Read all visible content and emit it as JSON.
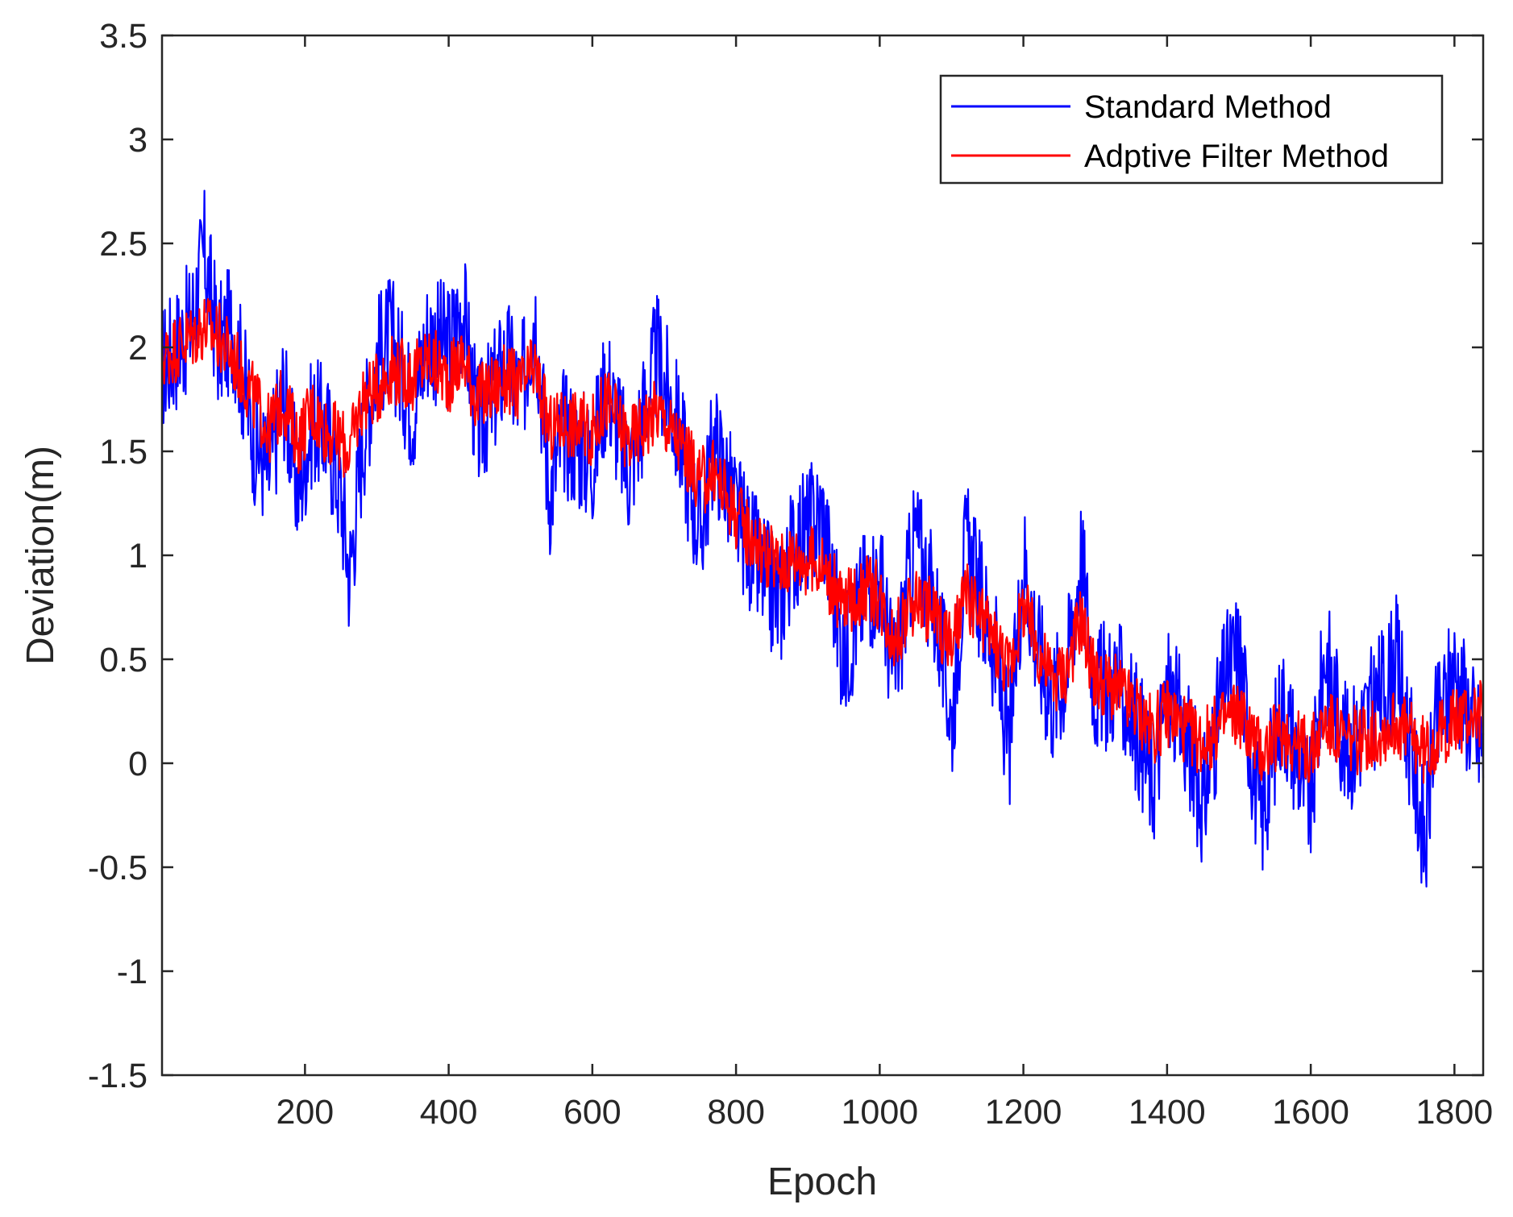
{
  "chart_data": {
    "type": "line",
    "title": "",
    "xlabel": "Epoch",
    "ylabel": "Deviation(m)",
    "xlim": [
      1,
      1840
    ],
    "ylim": [
      -1.5,
      3.5
    ],
    "xticks": [
      200,
      400,
      600,
      800,
      1000,
      1200,
      1400,
      1600,
      1800
    ],
    "xtick_labels": [
      "200",
      "400",
      "600",
      "800",
      "1000",
      "1200",
      "1400",
      "1600",
      "1800"
    ],
    "yticks": [
      -1.5,
      -1,
      -0.5,
      0,
      0.5,
      1,
      1.5,
      2,
      2.5,
      3,
      3.5
    ],
    "ytick_labels": [
      "-1.5",
      "-1",
      "-0.5",
      "0",
      "0.5",
      "1",
      "1.5",
      "2",
      "2.5",
      "3",
      "3.5"
    ],
    "grid": false,
    "legend_position": "top-right",
    "series": [
      {
        "name": "Standard Method",
        "color": "#0000ff",
        "x": [
          1,
          40,
          60,
          80,
          100,
          130,
          150,
          170,
          190,
          210,
          230,
          250,
          262,
          280,
          300,
          320,
          350,
          370,
          400,
          420,
          440,
          460,
          480,
          500,
          520,
          540,
          560,
          600,
          620,
          650,
          690,
          720,
          750,
          770,
          800,
          830,
          860,
          880,
          920,
          950,
          980,
          1000,
          1020,
          1050,
          1080,
          1100,
          1120,
          1160,
          1180,
          1200,
          1220,
          1240,
          1260,
          1280,
          1300,
          1330,
          1360,
          1380,
          1400,
          1430,
          1450,
          1480,
          1500,
          1530,
          1560,
          1600,
          1620,
          1650,
          1700,
          1720,
          1760,
          1770,
          1800,
          1840
        ],
        "values": [
          1.9,
          2.1,
          2.45,
          2.0,
          2.1,
          1.55,
          1.4,
          1.8,
          1.3,
          1.65,
          1.6,
          1.3,
          0.9,
          1.55,
          1.95,
          2.05,
          1.7,
          2.05,
          2.0,
          2.2,
          1.6,
          1.75,
          1.95,
          1.75,
          2.2,
          1.3,
          1.6,
          1.45,
          1.85,
          1.4,
          1.95,
          1.6,
          1.1,
          1.55,
          1.2,
          0.95,
          0.75,
          1.05,
          1.2,
          0.5,
          0.85,
          0.9,
          0.4,
          1.1,
          0.7,
          0.2,
          1.05,
          0.55,
          0.05,
          1.0,
          0.55,
          0.3,
          0.45,
          1.0,
          0.35,
          0.4,
          0.15,
          -0.1,
          0.35,
          0.1,
          -0.2,
          0.4,
          0.55,
          -0.3,
          0.3,
          -0.2,
          0.55,
          0.05,
          0.35,
          0.5,
          -0.4,
          0.1,
          0.45,
          0.05
        ]
      },
      {
        "name": "Adptive Filter Method",
        "color": "#ff0000",
        "x": [
          1,
          40,
          60,
          80,
          100,
          130,
          150,
          170,
          190,
          210,
          230,
          250,
          262,
          280,
          300,
          320,
          350,
          370,
          400,
          420,
          440,
          460,
          480,
          500,
          520,
          540,
          560,
          600,
          620,
          650,
          690,
          720,
          750,
          770,
          800,
          830,
          860,
          880,
          920,
          950,
          980,
          1000,
          1020,
          1050,
          1080,
          1100,
          1120,
          1160,
          1180,
          1200,
          1220,
          1240,
          1260,
          1280,
          1300,
          1330,
          1360,
          1380,
          1400,
          1430,
          1450,
          1480,
          1500,
          1530,
          1560,
          1600,
          1620,
          1650,
          1700,
          1720,
          1760,
          1770,
          1800,
          1840
        ],
        "values": [
          1.95,
          2.05,
          2.1,
          2.05,
          1.95,
          1.75,
          1.6,
          1.75,
          1.55,
          1.7,
          1.6,
          1.55,
          1.5,
          1.75,
          1.8,
          1.9,
          1.85,
          1.95,
          1.85,
          1.95,
          1.75,
          1.8,
          1.85,
          1.8,
          1.9,
          1.6,
          1.65,
          1.6,
          1.75,
          1.55,
          1.7,
          1.55,
          1.35,
          1.4,
          1.2,
          1.05,
          0.95,
          1.0,
          0.95,
          0.75,
          0.85,
          0.8,
          0.6,
          0.8,
          0.7,
          0.55,
          0.8,
          0.6,
          0.45,
          0.75,
          0.55,
          0.4,
          0.45,
          0.7,
          0.4,
          0.35,
          0.25,
          0.15,
          0.25,
          0.15,
          0.1,
          0.2,
          0.25,
          0.05,
          0.15,
          0.05,
          0.2,
          0.1,
          0.15,
          0.2,
          0.05,
          0.1,
          0.2,
          0.25
        ]
      }
    ]
  }
}
